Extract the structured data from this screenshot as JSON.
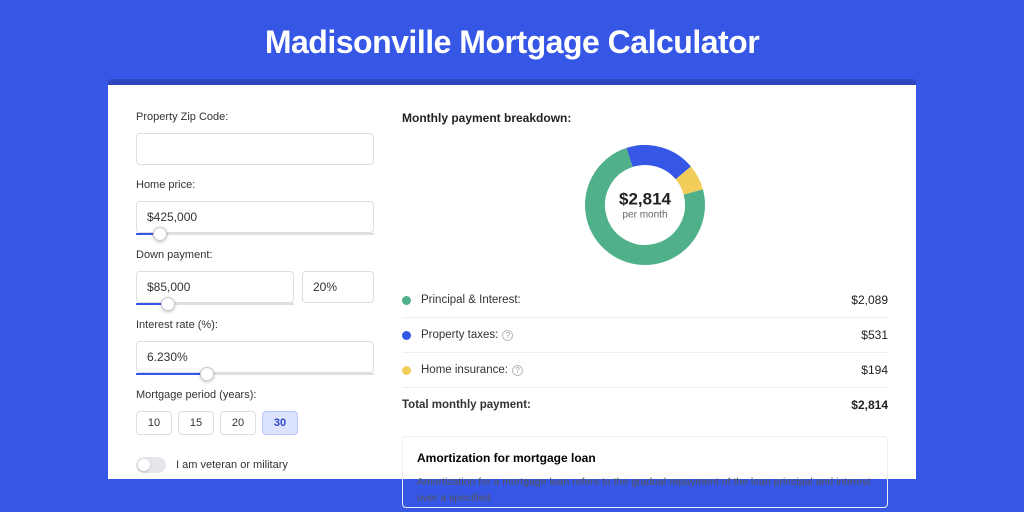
{
  "page": {
    "title": "Madisonville Mortgage Calculator",
    "background_color": "#3656e6",
    "shadow_color": "#2e47c0",
    "card_bg": "#ffffff"
  },
  "form": {
    "zip": {
      "label": "Property Zip Code:",
      "value": ""
    },
    "home_price": {
      "label": "Home price:",
      "value": "$425,000",
      "slider_pct": 10
    },
    "down_payment": {
      "label": "Down payment:",
      "amount": "$85,000",
      "percent": "20%",
      "slider_pct": 20
    },
    "interest_rate": {
      "label": "Interest rate (%):",
      "value": "6.230%",
      "slider_pct": 30
    },
    "period": {
      "label": "Mortgage period (years):",
      "options": [
        "10",
        "15",
        "20",
        "30"
      ],
      "selected": "30"
    },
    "veteran": {
      "label": "I am veteran or military",
      "on": false
    }
  },
  "breakdown": {
    "title": "Monthly payment breakdown:",
    "center_amount": "$2,814",
    "center_sub": "per month",
    "items": [
      {
        "key": "pi",
        "label": "Principal & Interest:",
        "value": "$2,089",
        "color": "#4fb08a",
        "pct": 74.2,
        "help": false
      },
      {
        "key": "tax",
        "label": "Property taxes:",
        "value": "$531",
        "color": "#3656e6",
        "pct": 18.9,
        "help": true
      },
      {
        "key": "ins",
        "label": "Home insurance:",
        "value": "$194",
        "color": "#f3cd5a",
        "pct": 6.9,
        "help": true
      }
    ],
    "total": {
      "label": "Total monthly payment:",
      "value": "$2,814"
    },
    "donut": {
      "size": 120,
      "thickness": 20,
      "rotation_offset_deg": -18
    }
  },
  "amortization": {
    "title": "Amortization for mortgage loan",
    "text": "Amortization for a mortgage loan refers to the gradual repayment of the loan principal and interest over a specified"
  }
}
